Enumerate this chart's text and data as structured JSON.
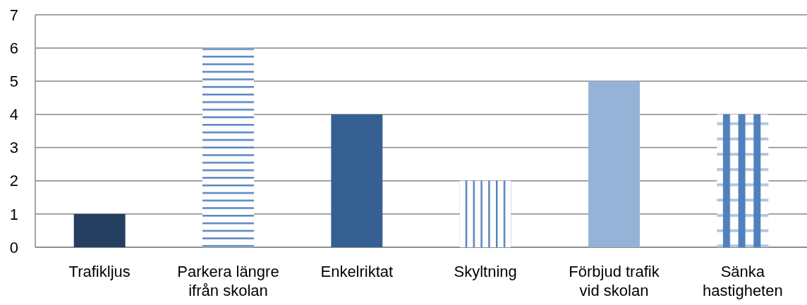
{
  "chart_data": {
    "type": "bar",
    "categories": [
      "Trafikljus",
      "Parkera längre ifrån skolan",
      "Enkelriktat",
      "Skyltning",
      "Förbjud trafik vid skolan",
      "Sänka hastigheten"
    ],
    "values": [
      1,
      6,
      4,
      2,
      5,
      4
    ],
    "colors": [
      "#243f60",
      "#4f81bd",
      "#376092",
      "#4f81bd",
      "#95b3d7",
      "#4f81bd"
    ],
    "ylim": [
      0,
      7
    ],
    "yticks": [
      0,
      1,
      2,
      3,
      4,
      5,
      6,
      7
    ],
    "grid": "y"
  }
}
